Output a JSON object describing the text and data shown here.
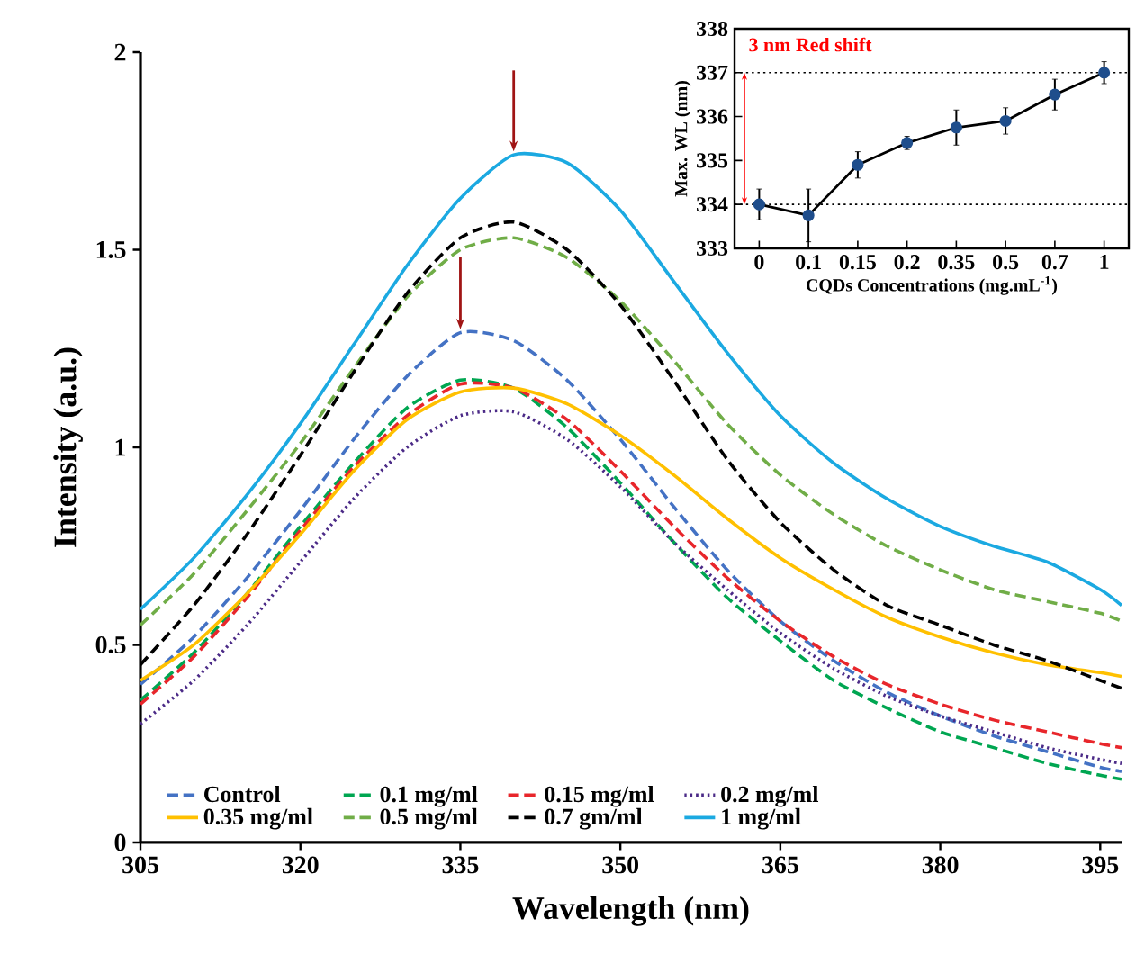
{
  "chart_data": [
    {
      "type": "line",
      "xlabel": "Wavelength (nm)",
      "ylabel": "Intensity (a.u.)",
      "x": [
        305,
        310,
        315,
        320,
        325,
        330,
        335,
        340,
        345,
        350,
        355,
        360,
        365,
        370,
        375,
        380,
        385,
        390,
        395,
        397
      ],
      "xlim": [
        305,
        397
      ],
      "xticks": [
        305,
        320,
        335,
        350,
        365,
        380,
        395
      ],
      "ylim": [
        0,
        2
      ],
      "yticks": [
        0,
        0.5,
        1,
        1.5,
        2
      ],
      "legend": "bottom",
      "grid": false,
      "series": [
        {
          "name": "Control",
          "color": "#4472c4",
          "line_style": "dashed",
          "values": [
            0.4,
            0.52,
            0.67,
            0.84,
            1.02,
            1.18,
            1.29,
            1.27,
            1.17,
            1.02,
            0.85,
            0.69,
            0.56,
            0.46,
            0.38,
            0.32,
            0.27,
            0.23,
            0.19,
            0.18
          ]
        },
        {
          "name": "0.1 mg/ml",
          "color": "#00a651",
          "line_style": "dashed",
          "values": [
            0.36,
            0.48,
            0.63,
            0.8,
            0.96,
            1.1,
            1.17,
            1.15,
            1.05,
            0.91,
            0.76,
            0.62,
            0.51,
            0.41,
            0.34,
            0.28,
            0.24,
            0.2,
            0.17,
            0.16
          ]
        },
        {
          "name": "0.15 mg/ml",
          "color": "#e8262b",
          "line_style": "dashed",
          "values": [
            0.35,
            0.47,
            0.62,
            0.79,
            0.95,
            1.08,
            1.16,
            1.15,
            1.07,
            0.94,
            0.8,
            0.67,
            0.56,
            0.47,
            0.4,
            0.35,
            0.31,
            0.28,
            0.25,
            0.24
          ]
        },
        {
          "name": "0.2 mg/ml",
          "color": "#4b2a87",
          "line_style": "dotted",
          "values": [
            0.3,
            0.41,
            0.55,
            0.71,
            0.87,
            1.0,
            1.08,
            1.09,
            1.02,
            0.9,
            0.76,
            0.64,
            0.53,
            0.44,
            0.37,
            0.32,
            0.28,
            0.24,
            0.21,
            0.2
          ]
        },
        {
          "name": "0.35 mg/ml",
          "color": "#ffc000",
          "line_style": "solid",
          "values": [
            0.41,
            0.5,
            0.63,
            0.78,
            0.94,
            1.07,
            1.14,
            1.15,
            1.11,
            1.03,
            0.93,
            0.82,
            0.72,
            0.64,
            0.57,
            0.52,
            0.48,
            0.45,
            0.43,
            0.42
          ]
        },
        {
          "name": "0.5 mg/ml",
          "color": "#70ad47",
          "line_style": "dashed",
          "values": [
            0.55,
            0.68,
            0.84,
            1.01,
            1.2,
            1.38,
            1.5,
            1.53,
            1.48,
            1.37,
            1.22,
            1.06,
            0.93,
            0.83,
            0.75,
            0.69,
            0.64,
            0.61,
            0.58,
            0.56
          ]
        },
        {
          "name": "0.7 gm/ml",
          "color": "#000000",
          "line_style": "dashed",
          "values": [
            0.45,
            0.6,
            0.78,
            0.98,
            1.19,
            1.39,
            1.53,
            1.57,
            1.5,
            1.36,
            1.17,
            0.97,
            0.81,
            0.69,
            0.6,
            0.55,
            0.5,
            0.46,
            0.41,
            0.39
          ]
        },
        {
          "name": "1 mg/ml",
          "color": "#1ba9e1",
          "line_style": "solid",
          "values": [
            0.59,
            0.72,
            0.88,
            1.06,
            1.26,
            1.46,
            1.63,
            1.74,
            1.72,
            1.6,
            1.42,
            1.24,
            1.08,
            0.96,
            0.87,
            0.8,
            0.75,
            0.71,
            0.64,
            0.6
          ]
        }
      ]
    },
    {
      "type": "line",
      "xlabel": "CQDs Concentrations (mg.mL$^{-1}$)",
      "ylabel": "Max. WL (nm)",
      "categories": [
        "0",
        "0.1",
        "0.15",
        "0.2",
        "0.35",
        "0.5",
        "0.7",
        "1"
      ],
      "ylim": [
        333,
        338
      ],
      "yticks": [
        333,
        334,
        335,
        336,
        337,
        338
      ],
      "marker": "circle",
      "grid": false,
      "annotations": [
        "3 nm Red shift"
      ],
      "ref_lines": [
        {
          "axis": "y",
          "value": 337,
          "line_style": "dotted",
          "color": "#000000"
        },
        {
          "axis": "y",
          "value": 334,
          "line_style": "dotted",
          "color": "#000000"
        }
      ],
      "series": [
        {
          "color": "#1f4e8c",
          "values": [
            334.0,
            333.75,
            334.9,
            335.4,
            335.75,
            335.9,
            336.5,
            337.0
          ],
          "errors": [
            0.35,
            0.6,
            0.3,
            0.15,
            0.4,
            0.3,
            0.35,
            0.25
          ]
        }
      ]
    }
  ]
}
